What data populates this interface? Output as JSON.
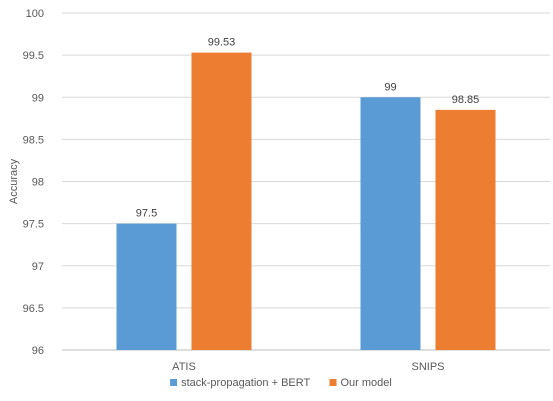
{
  "chart_data": {
    "type": "bar",
    "title": "",
    "xlabel": "",
    "ylabel": "Accuracy",
    "categories": [
      "ATIS",
      "SNIPS"
    ],
    "series": [
      {
        "name": "stack-propagation + BERT",
        "values": [
          97.5,
          99
        ],
        "labels": [
          "97.5",
          "99"
        ],
        "color": "#5b9bd5"
      },
      {
        "name": "Our model",
        "values": [
          99.53,
          98.85
        ],
        "labels": [
          "99.53",
          "98.85"
        ],
        "color": "#ed7d31"
      }
    ],
    "ylim": [
      96,
      100
    ],
    "yticks": [
      96,
      96.5,
      97,
      97.5,
      98,
      98.5,
      99,
      99.5,
      100
    ],
    "ytick_labels": [
      "96",
      "96.5",
      "97",
      "97.5",
      "98",
      "98.5",
      "99",
      "99.5",
      "100"
    ],
    "grid": true,
    "legend_position": "bottom"
  }
}
